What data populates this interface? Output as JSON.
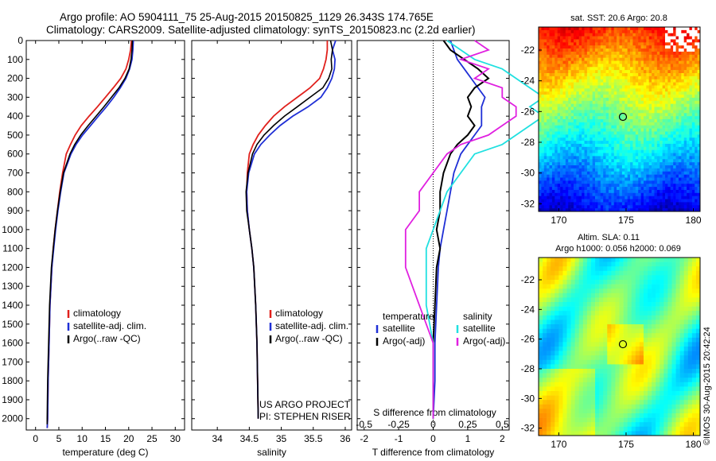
{
  "header": {
    "line1": "Argo profile: AO 5904111_75 25-Aug-2015 20150825_1129 26.343S 174.765E",
    "line2": "Climatology: CARS2009. Satellite-adjusted climatology: synTS_20150823.nc (2.2d earlier)"
  },
  "colors": {
    "climatology": "#e0201c",
    "satellite": "#1f2fd6",
    "argo": "#000000",
    "argo_s": "#e020e0",
    "sat_s": "#20e0e0"
  },
  "chart_data": [
    {
      "type": "line",
      "name": "temperature-panel",
      "xlabel": "temperature (deg C)",
      "ylabel": "",
      "xlim": [
        -2,
        32
      ],
      "ylim": [
        2060,
        0
      ],
      "xticks": [
        "0",
        "5",
        "10",
        "15",
        "20",
        "25",
        "30"
      ],
      "yticks": [
        "0",
        "100",
        "200",
        "300",
        "400",
        "500",
        "600",
        "700",
        "800",
        "900",
        "1000",
        "1100",
        "1200",
        "1300",
        "1400",
        "1500",
        "1600",
        "1700",
        "1800",
        "1900",
        "2000"
      ],
      "legend": [
        "climatology",
        "satellite-adj. clim.",
        "Argo(..raw -QC)"
      ],
      "series": [
        {
          "name": "climatology",
          "color_key": "climatology",
          "x": [
            20.6,
            20.4,
            20.0,
            19.4,
            18.3,
            16.7,
            15.0,
            13.3,
            11.5,
            9.8,
            8.5,
            7.5,
            6.6,
            5.8,
            5.2,
            4.7,
            4.2,
            3.8,
            3.5,
            3.1,
            2.9,
            2.7,
            2.6,
            2.5
          ],
          "y": [
            0,
            50,
            100,
            150,
            200,
            250,
            300,
            350,
            400,
            450,
            500,
            550,
            600,
            700,
            800,
            900,
            1000,
            1100,
            1200,
            1400,
            1600,
            1800,
            2000,
            2050
          ]
        },
        {
          "name": "satellite-adj. clim.",
          "color_key": "satellite",
          "x": [
            21.0,
            20.9,
            20.7,
            20.2,
            19.4,
            18.2,
            16.8,
            15.2,
            13.5,
            11.8,
            10.1,
            8.7,
            7.6,
            6.1,
            5.4,
            4.8,
            4.3,
            3.9,
            3.5,
            3.1,
            2.9,
            2.7,
            2.6,
            2.5
          ],
          "y": [
            0,
            50,
            100,
            150,
            200,
            250,
            300,
            350,
            400,
            450,
            500,
            550,
            600,
            700,
            800,
            900,
            1000,
            1100,
            1200,
            1400,
            1600,
            1800,
            2000,
            2050
          ]
        },
        {
          "name": "Argo(..raw -QC)",
          "color_key": "argo",
          "x": [
            20.8,
            20.7,
            20.5,
            20.1,
            19.2,
            17.9,
            16.3,
            14.7,
            13.0,
            11.3,
            9.7,
            8.4,
            7.4,
            6.0,
            5.3,
            4.7,
            4.2,
            3.8,
            3.4,
            3.0,
            2.8,
            2.6,
            2.5,
            2.5
          ],
          "y": [
            0,
            50,
            100,
            150,
            200,
            250,
            300,
            350,
            400,
            450,
            500,
            550,
            600,
            700,
            800,
            900,
            1000,
            1100,
            1200,
            1400,
            1600,
            1800,
            2000,
            2030
          ]
        }
      ]
    },
    {
      "type": "line",
      "name": "salinity-panel",
      "xlabel": "salinity",
      "xlim": [
        33.6,
        36.1
      ],
      "ylim": [
        2060,
        0
      ],
      "xticks": [
        "34",
        "34.5",
        "35",
        "35.5",
        "36"
      ],
      "legend": [
        "climatology",
        "satellite-adj. clim.",
        "Argo(..raw -QC)"
      ],
      "annotation": [
        "US ARGO PROJECT",
        "PI: STEPHEN RISER"
      ],
      "series": [
        {
          "name": "climatology",
          "color_key": "climatology",
          "x": [
            35.72,
            35.72,
            35.7,
            35.66,
            35.6,
            35.45,
            35.25,
            35.05,
            34.88,
            34.75,
            34.64,
            34.56,
            34.5,
            34.47,
            34.46,
            34.47,
            34.5,
            34.54,
            34.57,
            34.6,
            34.62,
            34.63,
            34.64
          ],
          "y": [
            0,
            50,
            100,
            150,
            200,
            250,
            300,
            350,
            400,
            450,
            500,
            550,
            600,
            700,
            800,
            900,
            1000,
            1100,
            1200,
            1400,
            1600,
            1800,
            2000
          ]
        },
        {
          "name": "satellite-adj. clim.",
          "color_key": "satellite",
          "x": [
            35.85,
            35.8,
            35.84,
            35.83,
            35.79,
            35.72,
            35.62,
            35.42,
            35.18,
            34.98,
            34.82,
            34.68,
            34.58,
            34.49,
            34.46,
            34.47,
            34.5,
            34.54,
            34.57,
            34.6,
            34.62,
            34.63,
            34.64
          ],
          "y": [
            0,
            50,
            100,
            150,
            200,
            250,
            300,
            350,
            400,
            450,
            500,
            550,
            600,
            700,
            800,
            900,
            1000,
            1100,
            1200,
            1400,
            1600,
            1800,
            2000
          ]
        },
        {
          "name": "Argo(..raw -QC)",
          "color_key": "argo",
          "x": [
            35.77,
            35.8,
            35.78,
            35.79,
            35.74,
            35.65,
            35.45,
            35.25,
            35.05,
            34.88,
            34.73,
            34.62,
            34.55,
            34.48,
            34.45,
            34.46,
            34.5,
            34.54,
            34.57,
            34.6,
            34.62,
            34.63,
            34.64
          ],
          "y": [
            0,
            50,
            100,
            150,
            200,
            250,
            300,
            350,
            400,
            450,
            500,
            550,
            600,
            700,
            800,
            900,
            1000,
            1100,
            1200,
            1400,
            1600,
            1800,
            2000
          ]
        }
      ]
    },
    {
      "type": "line",
      "name": "difference-panel",
      "xlabel": "T difference from climatology",
      "xlabel_top": "S difference from climatology",
      "xlim": [
        -2.2,
        2.2
      ],
      "ylim": [
        2060,
        0
      ],
      "xticks": [
        "-2",
        "-1",
        "0",
        "1",
        "2"
      ],
      "xticks_s": [
        "-0.5",
        "-0.25",
        "0",
        "0.25",
        "0.5"
      ],
      "legend_t": [
        "temperature",
        "satellite",
        "Argo(-adj)"
      ],
      "legend_s": [
        "salinity",
        "satellite",
        "Argo(-adj)"
      ],
      "series": [
        {
          "name": "temperature satellite",
          "color_key": "satellite",
          "x": [
            0.5,
            0.6,
            0.7,
            0.9,
            1.1,
            1.3,
            1.5,
            1.4,
            1.4,
            1.4,
            1.2,
            1.0,
            0.8,
            0.6,
            0.5,
            0.4,
            0.3,
            0.2,
            0.15,
            0.1,
            0.05,
            0.05,
            0.0
          ],
          "y": [
            0,
            50,
            100,
            150,
            200,
            250,
            300,
            350,
            400,
            450,
            500,
            550,
            600,
            700,
            800,
            900,
            1000,
            1100,
            1200,
            1400,
            1600,
            1800,
            2000
          ]
        },
        {
          "name": "temperature Argo(-adj)",
          "color_key": "argo",
          "x": [
            0.3,
            0.5,
            0.9,
            1.3,
            1.6,
            1.2,
            1.0,
            1.1,
            1.0,
            1.2,
            1.0,
            0.7,
            0.5,
            0.3,
            0.2,
            0.2,
            0.1,
            0.2,
            0.1,
            0.05,
            0.0,
            0.0,
            0.0
          ],
          "y": [
            0,
            50,
            100,
            150,
            200,
            250,
            300,
            350,
            400,
            450,
            500,
            550,
            600,
            700,
            800,
            900,
            1000,
            1100,
            1200,
            1400,
            1600,
            1800,
            2000
          ]
        },
        {
          "name": "salinity satellite",
          "color_key": "sat_s",
          "x": [
            0.1,
            0.2,
            0.3,
            0.5,
            0.6,
            0.7,
            0.8,
            0.7,
            0.8,
            0.7,
            0.6,
            0.5,
            0.3,
            0.2,
            0.1,
            0.05,
            0.0,
            -0.05,
            -0.05,
            -0.05,
            0.0,
            0.0,
            0.0
          ],
          "y": [
            0,
            50,
            100,
            150,
            200,
            250,
            300,
            350,
            400,
            450,
            500,
            550,
            600,
            700,
            800,
            900,
            1000,
            1100,
            1200,
            1400,
            1600,
            1800,
            2000
          ]
        },
        {
          "name": "salinity Argo(-adj)",
          "color_key": "argo_s",
          "x": [
            0.3,
            0.4,
            0.2,
            0.4,
            0.3,
            0.5,
            0.5,
            0.6,
            0.6,
            0.5,
            0.4,
            0.2,
            0.1,
            0.0,
            -0.1,
            -0.1,
            -0.2,
            -0.2,
            -0.2,
            -0.1,
            0.0,
            0.0,
            0.0
          ],
          "y": [
            0,
            50,
            100,
            150,
            200,
            250,
            300,
            350,
            400,
            450,
            500,
            550,
            600,
            700,
            800,
            900,
            1000,
            1100,
            1200,
            1400,
            1600,
            1800,
            2000
          ]
        }
      ]
    },
    {
      "type": "heatmap",
      "name": "sst-map",
      "title": "sat. SST: 20.6  Argo: 20.8",
      "xticks": [
        "170",
        "175",
        "180"
      ],
      "yticks": [
        "-22",
        "-24",
        "-26",
        "-28",
        "-30",
        "-32"
      ],
      "xlim": [
        168.5,
        180.5
      ],
      "ylim": [
        -32.5,
        -20.5
      ],
      "marker": {
        "lon": 174.765,
        "lat": -26.343
      }
    },
    {
      "type": "heatmap",
      "name": "sla-map",
      "title_line1": "Altim. SLA: 0.11",
      "title_line2": "Argo h1000: 0.056 h2000: 0.069",
      "xticks": [
        "170",
        "175",
        "180"
      ],
      "yticks": [
        "-22",
        "-24",
        "-26",
        "-28",
        "-30",
        "-32"
      ],
      "xlim": [
        168.5,
        180.5
      ],
      "ylim": [
        -32.5,
        -20.5
      ],
      "marker": {
        "lon": 174.765,
        "lat": -26.343
      }
    }
  ],
  "credit": "©IMOS 30-Aug-2015 20:42:24"
}
